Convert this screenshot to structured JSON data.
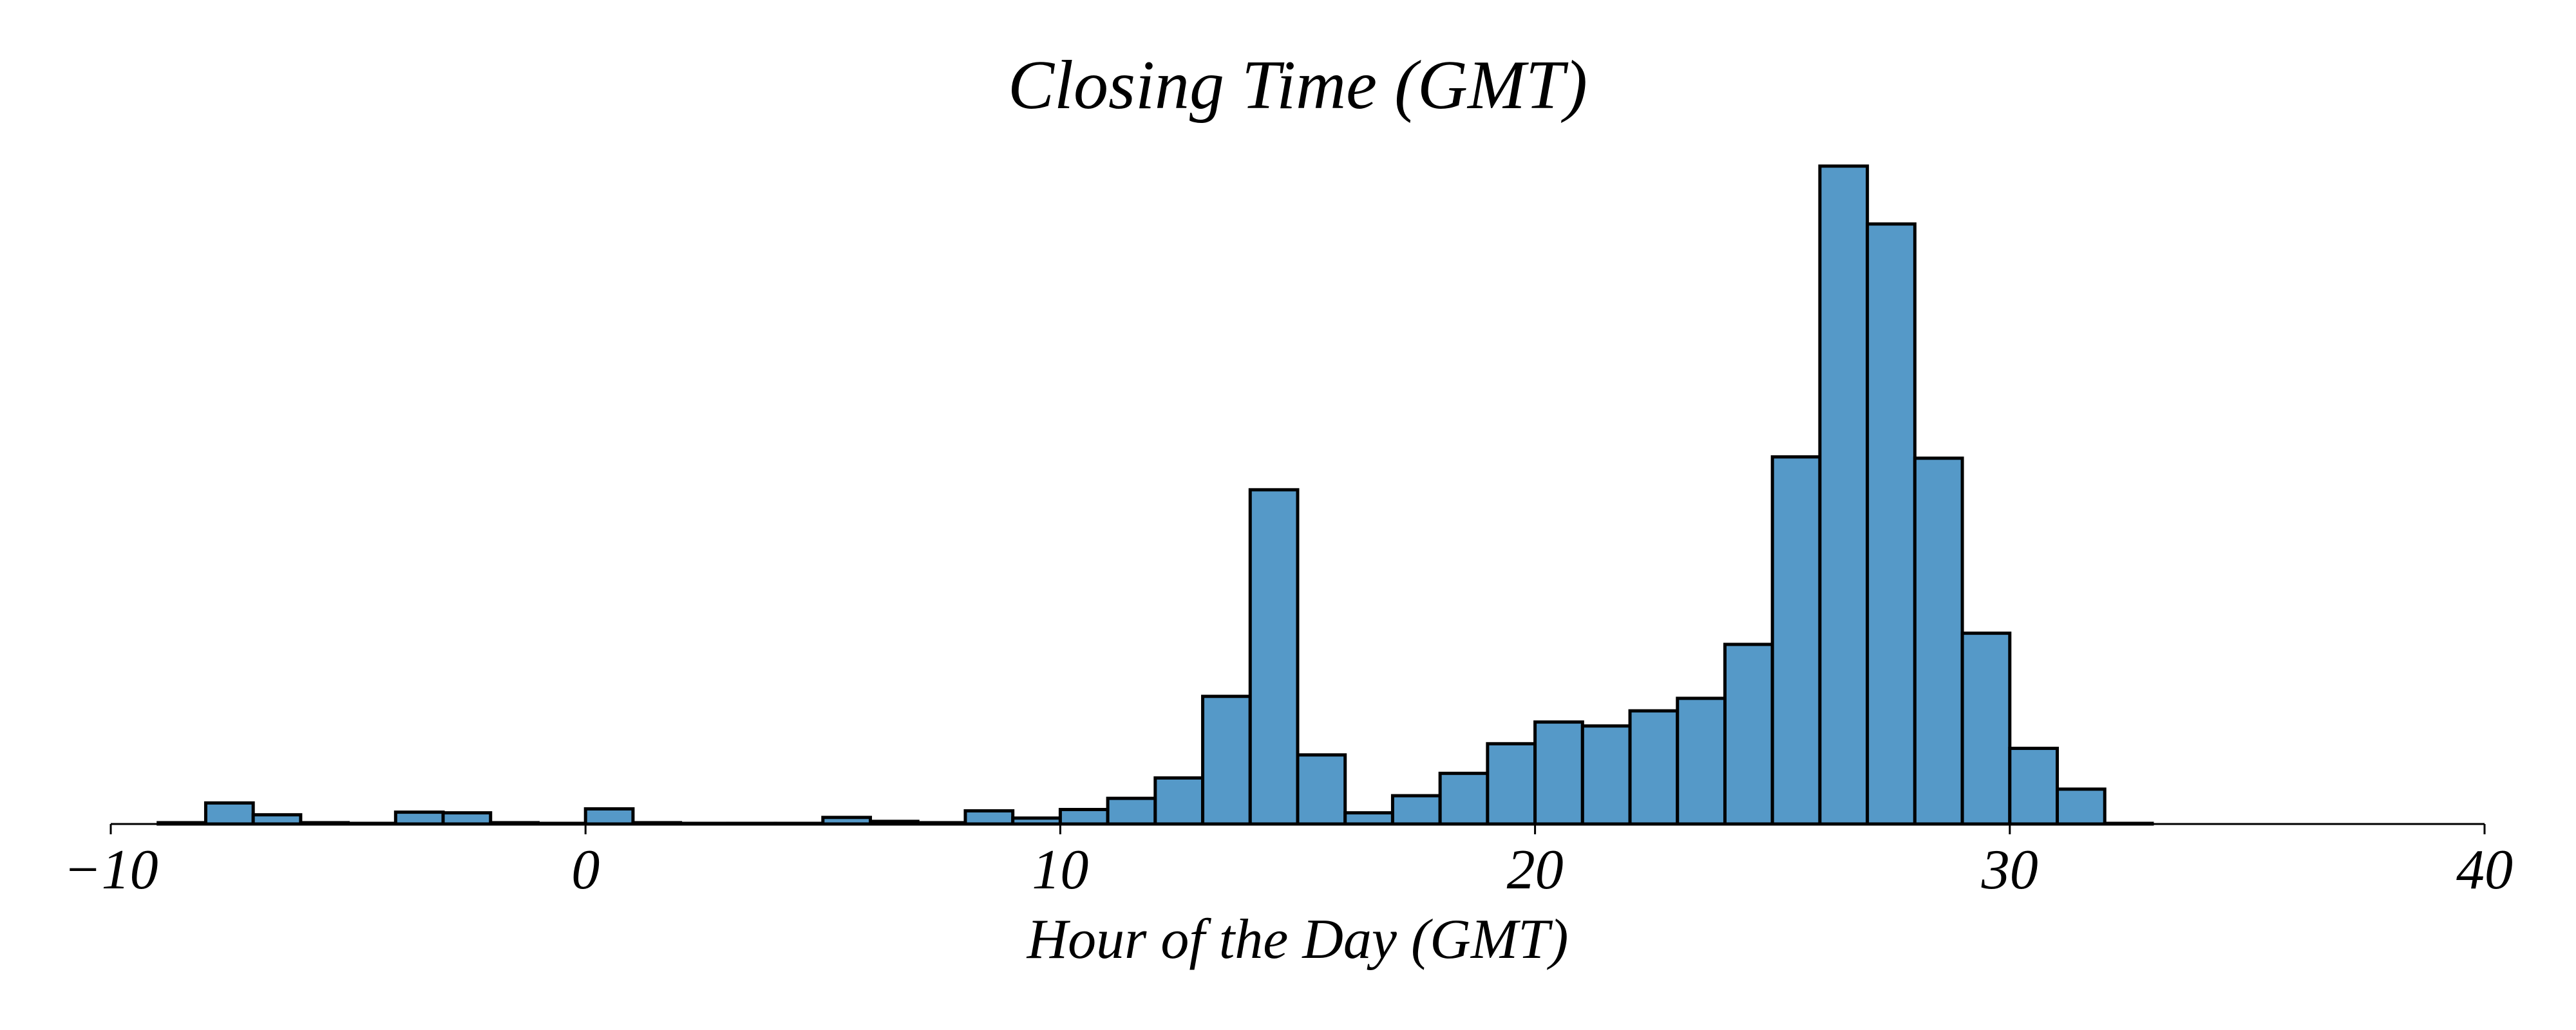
{
  "chart_data": {
    "type": "bar",
    "title": "Closing Time (GMT)",
    "xlabel": "Hour of the Day (GMT)",
    "ylabel": "",
    "xlim": [
      -10,
      40
    ],
    "ylim": [
      0,
      1000
    ],
    "xticks": [
      -10,
      0,
      10,
      20,
      30,
      40
    ],
    "xtick_labels": [
      "−10",
      "0",
      "10",
      "20",
      "30",
      "40"
    ],
    "yaxis_visible": false,
    "grid": false,
    "bar_color": "#5599c8",
    "edge_color": "#000000",
    "bin_width": 1,
    "bins": [
      {
        "x0": -9,
        "count": 2
      },
      {
        "x0": -8,
        "count": 32
      },
      {
        "x0": -7,
        "count": 14
      },
      {
        "x0": -6,
        "count": 2
      },
      {
        "x0": -5,
        "count": 1
      },
      {
        "x0": -4,
        "count": 18
      },
      {
        "x0": -3,
        "count": 17
      },
      {
        "x0": -2,
        "count": 2
      },
      {
        "x0": -1,
        "count": 1
      },
      {
        "x0": 0,
        "count": 23
      },
      {
        "x0": 1,
        "count": 2
      },
      {
        "x0": 2,
        "count": 1
      },
      {
        "x0": 3,
        "count": 1
      },
      {
        "x0": 4,
        "count": 1
      },
      {
        "x0": 5,
        "count": 10
      },
      {
        "x0": 6,
        "count": 4
      },
      {
        "x0": 7,
        "count": 2
      },
      {
        "x0": 8,
        "count": 20
      },
      {
        "x0": 9,
        "count": 9
      },
      {
        "x0": 10,
        "count": 22
      },
      {
        "x0": 11,
        "count": 39
      },
      {
        "x0": 12,
        "count": 70
      },
      {
        "x0": 13,
        "count": 194
      },
      {
        "x0": 14,
        "count": 508
      },
      {
        "x0": 15,
        "count": 105
      },
      {
        "x0": 16,
        "count": 17
      },
      {
        "x0": 17,
        "count": 43
      },
      {
        "x0": 18,
        "count": 77
      },
      {
        "x0": 19,
        "count": 122
      },
      {
        "x0": 20,
        "count": 155
      },
      {
        "x0": 21,
        "count": 149
      },
      {
        "x0": 22,
        "count": 172
      },
      {
        "x0": 23,
        "count": 191
      },
      {
        "x0": 24,
        "count": 273
      },
      {
        "x0": 25,
        "count": 558
      },
      {
        "x0": 26,
        "count": 1000
      },
      {
        "x0": 27,
        "count": 912
      },
      {
        "x0": 28,
        "count": 556
      },
      {
        "x0": 29,
        "count": 290
      },
      {
        "x0": 30,
        "count": 115
      },
      {
        "x0": 31,
        "count": 53
      },
      {
        "x0": 32,
        "count": 1
      }
    ]
  }
}
